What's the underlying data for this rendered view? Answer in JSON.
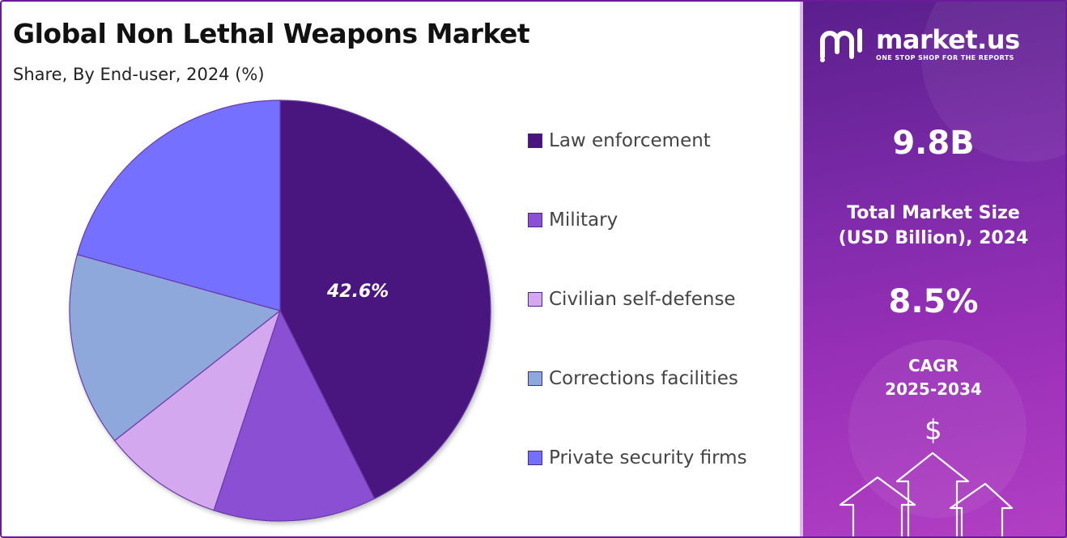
{
  "chart_data": {
    "type": "pie",
    "title": "Global Non Lethal Weapons Market",
    "subtitle": "Share, By End-user, 2024 (%)",
    "categories": [
      "Law enforcement",
      "Military",
      "Civilian self-defense",
      "Corrections facilities",
      "Private security firms"
    ],
    "values": [
      42.6,
      12.5,
      9.3,
      14.9,
      20.7
    ],
    "colors": [
      "#4a1480",
      "#8b4fd3",
      "#d4a8ee",
      "#8ea8dc",
      "#7470ff"
    ],
    "data_labels": [
      "42.6%",
      "",
      "",
      "",
      ""
    ],
    "start_angle_deg": 0,
    "direction": "clockwise",
    "legend_position": "right"
  },
  "sidebar": {
    "brand_name": "market.us",
    "brand_tagline": "ONE STOP SHOP FOR THE REPORTS",
    "market_size_value": "9.8B",
    "market_size_label_line1": "Total Market Size",
    "market_size_label_line2": "(USD Billion), 2024",
    "cagr_value": "8.5%",
    "cagr_label_line1": "CAGR",
    "cagr_label_line2": "2025-2034",
    "dollar_symbol": "$"
  },
  "colors": {
    "sidebar_gradient_start": "#5a1f8c",
    "sidebar_gradient_end": "#b13fc4",
    "frame_border": "#6a1b9a"
  }
}
